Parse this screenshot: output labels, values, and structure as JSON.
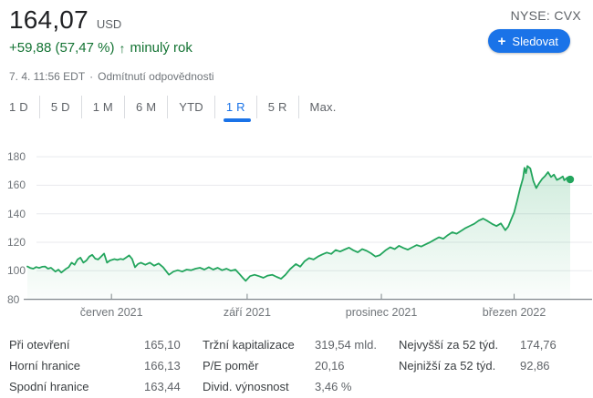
{
  "header": {
    "price": "164,07",
    "currency": "USD",
    "change": {
      "text": "+59,88 (57,47 %)",
      "arrow": "↑",
      "period": "minulý rok"
    },
    "meta": {
      "date": "7. 4. 11:56 EDT",
      "separator": "·",
      "disclaimer": "Odmítnutí odpovědnosti"
    },
    "ticker": "NYSE: CVX",
    "follow": {
      "plus": "+",
      "label": "Sledovat"
    }
  },
  "tabs": {
    "items": [
      {
        "label": "1 D",
        "active": false
      },
      {
        "label": "5 D",
        "active": false
      },
      {
        "label": "1 M",
        "active": false
      },
      {
        "label": "6 M",
        "active": false
      },
      {
        "label": "YTD",
        "active": false
      },
      {
        "label": "1 R",
        "active": true
      },
      {
        "label": "5 R",
        "active": false
      },
      {
        "label": "Max.",
        "active": false
      }
    ]
  },
  "chart_data": {
    "type": "line",
    "title": "CVX price, 1 year range",
    "x_unit": "days from chart start (early April 2021)",
    "x_domain_days": [
      0,
      368
    ],
    "ylim": [
      80,
      186
    ],
    "grid": "horizontal",
    "y_ticks": [
      180,
      160,
      140,
      120,
      100,
      80
    ],
    "x_ticks": [
      {
        "day": 57,
        "label": "červen 2021"
      },
      {
        "day": 149,
        "label": "září 2021"
      },
      {
        "day": 240,
        "label": "prosinec 2021"
      },
      {
        "day": 330,
        "label": "březen 2022"
      }
    ],
    "last_price": 164.07,
    "series": [
      {
        "name": "CVX",
        "points": [
          [
            0,
            103.0
          ],
          [
            2,
            102.0
          ],
          [
            4,
            101.5
          ],
          [
            6,
            102.6
          ],
          [
            8,
            102.0
          ],
          [
            10,
            102.8
          ],
          [
            12,
            103.0
          ],
          [
            14,
            101.5
          ],
          [
            16,
            102.1
          ],
          [
            19,
            99.4
          ],
          [
            21,
            100.8
          ],
          [
            23,
            98.7
          ],
          [
            26,
            101.2
          ],
          [
            28,
            102.5
          ],
          [
            30,
            105.7
          ],
          [
            32,
            104.2
          ],
          [
            34,
            107.9
          ],
          [
            36,
            109.2
          ],
          [
            38,
            105.7
          ],
          [
            40,
            107.2
          ],
          [
            42,
            110.0
          ],
          [
            44,
            111.2
          ],
          [
            46,
            108.5
          ],
          [
            48,
            107.9
          ],
          [
            50,
            110.0
          ],
          [
            52,
            112.1
          ],
          [
            54,
            105.7
          ],
          [
            56,
            107.2
          ],
          [
            59,
            108.2
          ],
          [
            61,
            107.6
          ],
          [
            63,
            108.3
          ],
          [
            65,
            107.9
          ],
          [
            67,
            109.3
          ],
          [
            69,
            110.8
          ],
          [
            71,
            108.3
          ],
          [
            73,
            102.5
          ],
          [
            75,
            104.8
          ],
          [
            77,
            105.7
          ],
          [
            80,
            104.2
          ],
          [
            83,
            105.7
          ],
          [
            86,
            103.6
          ],
          [
            89,
            105.1
          ],
          [
            92,
            102.5
          ],
          [
            96,
            97.2
          ],
          [
            99,
            99.4
          ],
          [
            102,
            100.4
          ],
          [
            105,
            99.4
          ],
          [
            108,
            100.8
          ],
          [
            111,
            100.4
          ],
          [
            114,
            101.5
          ],
          [
            117,
            102.1
          ],
          [
            120,
            100.8
          ],
          [
            123,
            102.5
          ],
          [
            126,
            100.8
          ],
          [
            129,
            102.1
          ],
          [
            132,
            100.4
          ],
          [
            135,
            101.5
          ],
          [
            138,
            100.0
          ],
          [
            141,
            100.8
          ],
          [
            144,
            97.5
          ],
          [
            146,
            95.1
          ],
          [
            148,
            92.9
          ],
          [
            151,
            96.2
          ],
          [
            154,
            97.2
          ],
          [
            157,
            96.2
          ],
          [
            160,
            95.1
          ],
          [
            163,
            96.6
          ],
          [
            166,
            97.2
          ],
          [
            169,
            95.7
          ],
          [
            172,
            94.4
          ],
          [
            175,
            97.2
          ],
          [
            178,
            101.0
          ],
          [
            180,
            102.9
          ],
          [
            182,
            104.7
          ],
          [
            185,
            102.9
          ],
          [
            188,
            106.8
          ],
          [
            191,
            108.9
          ],
          [
            194,
            107.9
          ],
          [
            197,
            110.0
          ],
          [
            200,
            111.5
          ],
          [
            203,
            112.8
          ],
          [
            206,
            111.8
          ],
          [
            209,
            114.6
          ],
          [
            212,
            113.5
          ],
          [
            215,
            114.9
          ],
          [
            218,
            116.2
          ],
          [
            221,
            114.4
          ],
          [
            224,
            113.0
          ],
          [
            227,
            115.2
          ],
          [
            230,
            114.0
          ],
          [
            233,
            112.3
          ],
          [
            236,
            110.0
          ],
          [
            239,
            111.0
          ],
          [
            241,
            112.8
          ],
          [
            243,
            114.5
          ],
          [
            246,
            116.5
          ],
          [
            249,
            115.2
          ],
          [
            252,
            117.5
          ],
          [
            255,
            116.0
          ],
          [
            258,
            114.8
          ],
          [
            261,
            116.5
          ],
          [
            264,
            118.0
          ],
          [
            267,
            117.0
          ],
          [
            270,
            118.5
          ],
          [
            273,
            120.0
          ],
          [
            276,
            121.8
          ],
          [
            279,
            123.5
          ],
          [
            282,
            122.5
          ],
          [
            285,
            125.0
          ],
          [
            288,
            127.0
          ],
          [
            291,
            126.0
          ],
          [
            294,
            128.0
          ],
          [
            297,
            130.0
          ],
          [
            300,
            131.5
          ],
          [
            303,
            133.0
          ],
          [
            306,
            135.2
          ],
          [
            309,
            136.6
          ],
          [
            312,
            134.9
          ],
          [
            315,
            132.9
          ],
          [
            318,
            131.4
          ],
          [
            321,
            133.2
          ],
          [
            324,
            128.5
          ],
          [
            326,
            131.0
          ],
          [
            328,
            136.0
          ],
          [
            330,
            141.0
          ],
          [
            332,
            149.0
          ],
          [
            334,
            157.5
          ],
          [
            336,
            165.0
          ],
          [
            337,
            172.2
          ],
          [
            338,
            168.5
          ],
          [
            339,
            173.5
          ],
          [
            341,
            171.8
          ],
          [
            343,
            163.0
          ],
          [
            345,
            158.0
          ],
          [
            347,
            161.5
          ],
          [
            349,
            164.5
          ],
          [
            351,
            166.5
          ],
          [
            353,
            169.2
          ],
          [
            355,
            165.8
          ],
          [
            357,
            167.5
          ],
          [
            359,
            163.7
          ],
          [
            361,
            164.8
          ],
          [
            363,
            166.2
          ],
          [
            364,
            163.5
          ],
          [
            366,
            165.3
          ],
          [
            367,
            164.5
          ],
          [
            368,
            164.07
          ]
        ]
      }
    ]
  },
  "stats": {
    "columns": [
      {
        "rows": [
          {
            "label": "Při otevření",
            "value": "165,10"
          },
          {
            "label": "Horní hranice",
            "value": "166,13"
          },
          {
            "label": "Spodní hranice",
            "value": "163,44"
          }
        ]
      },
      {
        "rows": [
          {
            "label": "Tržní kapitalizace",
            "value": "319,54 mld."
          },
          {
            "label": "P/E poměr",
            "value": "20,16"
          },
          {
            "label": "Divid. výnosnost",
            "value": "3,46 %"
          }
        ]
      },
      {
        "rows": [
          {
            "label": "Nejvyšší za 52 týd.",
            "value": "174,76"
          },
          {
            "label": "Nejnižší za 52 týd.",
            "value": "92,86"
          }
        ]
      }
    ]
  },
  "colors": {
    "accent_blue": "#1a73e8",
    "green_text": "#137333",
    "line_green": "#23a55d",
    "grid": "#e8eaed",
    "axis": "#80868b",
    "muted_text": "#70757a"
  }
}
